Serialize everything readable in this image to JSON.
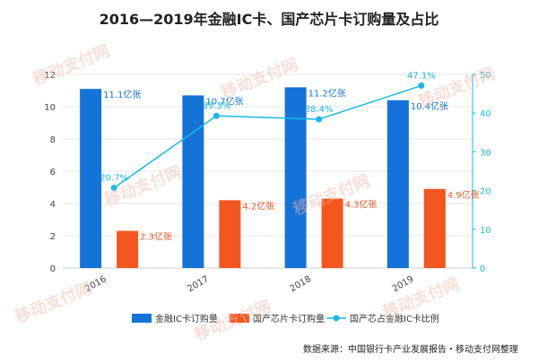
{
  "title": "2016—2019年金融IC卡、国产芯片卡订购量及占比",
  "source_note": "数据来源：中国银行卡产业发展报告・移动支付网整理",
  "watermark": "移动支付网",
  "colors": {
    "primary": "#1473d9",
    "secondary": "#f4561f",
    "line": "#19b8e8",
    "axis_right": "#19b8e8",
    "grid": "#e6e6e6"
  },
  "chart_data": {
    "type": "bar+line",
    "categories": [
      "2016",
      "2017",
      "2018",
      "2019"
    ],
    "series": [
      {
        "name": "金融IC卡订购量",
        "type": "bar",
        "axis": "left",
        "values": [
          11.1,
          10.7,
          11.2,
          10.4
        ],
        "labels": [
          "11.1亿张",
          "10.7亿张",
          "11.2亿张",
          "10.4亿张"
        ]
      },
      {
        "name": "国产芯片卡订购量",
        "type": "bar",
        "axis": "left",
        "values": [
          2.3,
          4.2,
          4.3,
          4.9
        ],
        "labels": [
          "2.3亿张",
          "4.2亿张",
          "4.3亿张",
          "4.9亿张"
        ]
      },
      {
        "name": "国产芯占金融IC卡比例",
        "type": "line",
        "axis": "right",
        "values": [
          20.7,
          39.3,
          38.4,
          47.1
        ],
        "labels": [
          "20.7%",
          "39.3%",
          "38.4%",
          "47.1%"
        ]
      }
    ],
    "y_left": {
      "min": 0,
      "max": 12,
      "ticks": [
        0,
        2,
        4,
        6,
        8,
        10,
        12
      ]
    },
    "y_right": {
      "min": 0,
      "max": 50,
      "ticks": [
        0,
        10,
        20,
        30,
        40,
        50
      ]
    },
    "grid": true,
    "legend_position": "bottom"
  }
}
